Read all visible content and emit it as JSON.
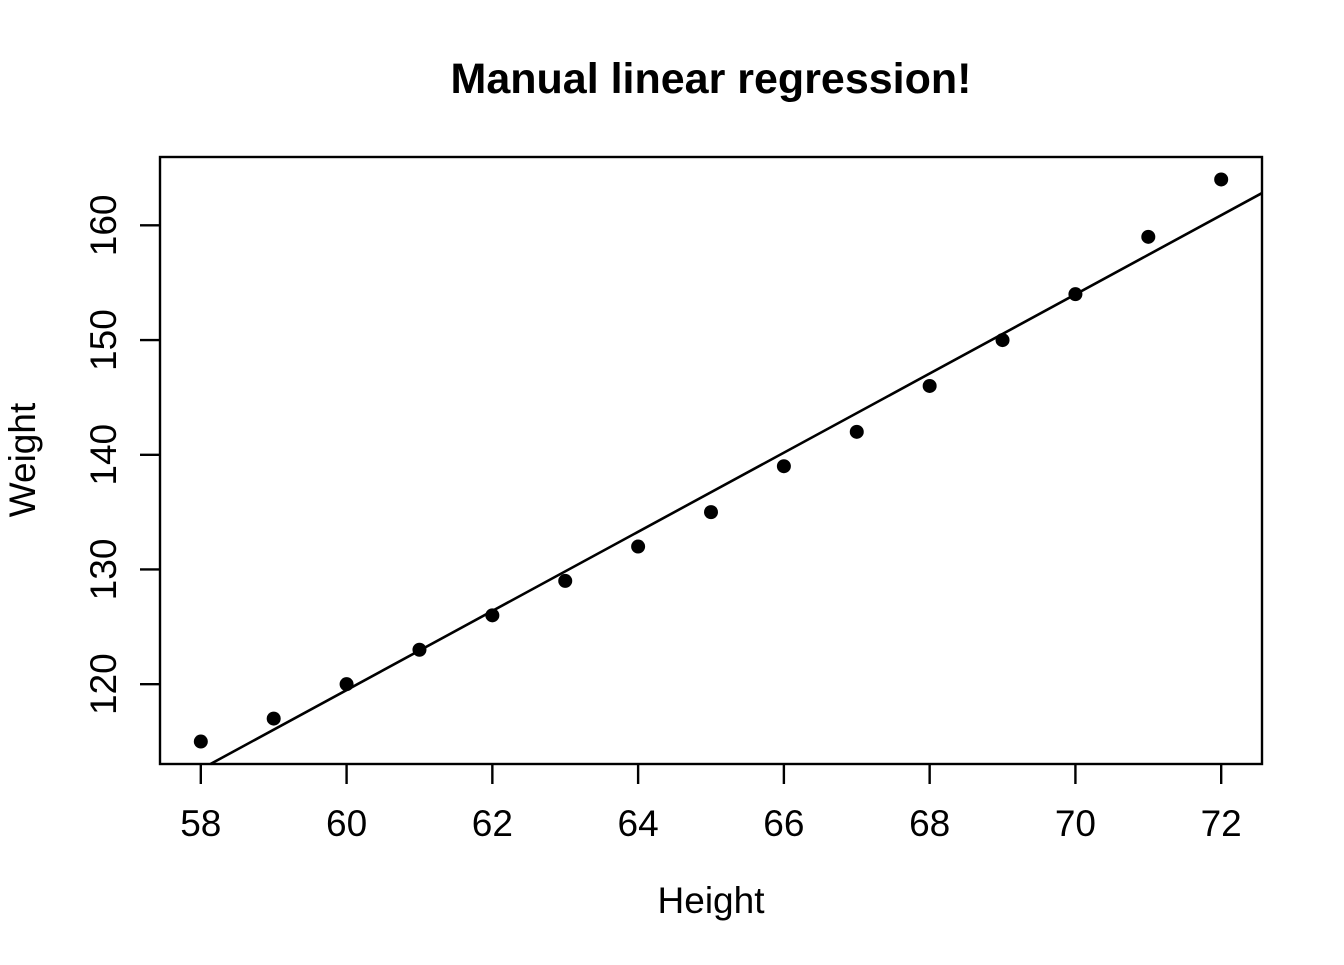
{
  "figure": {
    "background": "#ffffff"
  },
  "chart_data": {
    "type": "scatter",
    "title": "Manual linear regression!",
    "xlabel": "Height",
    "ylabel": "Weight",
    "x": [
      58,
      59,
      60,
      61,
      62,
      63,
      64,
      65,
      66,
      67,
      68,
      69,
      70,
      71,
      72
    ],
    "y": [
      115,
      117,
      120,
      123,
      126,
      129,
      132,
      135,
      139,
      142,
      146,
      150,
      154,
      159,
      164
    ],
    "regression_line": {
      "intercept": -87.51667,
      "slope": 3.45
    },
    "x_ticks": [
      58,
      60,
      62,
      64,
      66,
      68,
      70,
      72
    ],
    "y_ticks": [
      120,
      130,
      140,
      150,
      160
    ],
    "xlim": [
      57.44,
      72.56
    ],
    "ylim": [
      113.04,
      165.96
    ],
    "grid": false,
    "legend": "none",
    "point_color": "#000000",
    "line_color": "#000000",
    "frame_color": "#000000",
    "point_radius": 7
  }
}
